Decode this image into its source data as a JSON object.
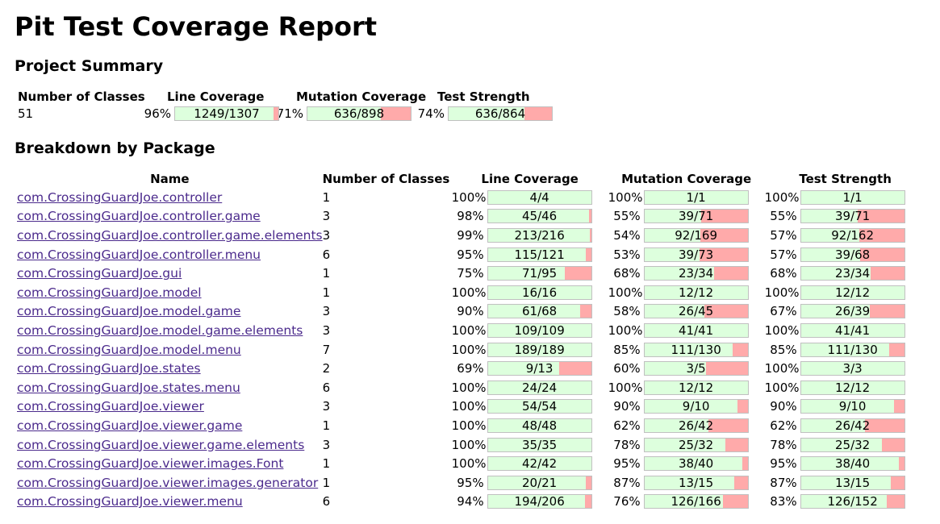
{
  "title": "Pit Test Coverage Report",
  "project_summary": {
    "heading": "Project Summary",
    "headers": [
      "Number of Classes",
      "Line Coverage",
      "Mutation Coverage",
      "Test Strength"
    ],
    "classes": "51",
    "line": {
      "pct": "96%",
      "ratio": "1249/1307",
      "fraction": 0.956
    },
    "mutation": {
      "pct": "71%",
      "ratio": "636/898",
      "fraction": 0.708
    },
    "strength": {
      "pct": "74%",
      "ratio": "636/864",
      "fraction": 0.736
    }
  },
  "breakdown": {
    "heading": "Breakdown by Package",
    "headers": [
      "Name",
      "Number of Classes",
      "Line Coverage",
      "Mutation Coverage",
      "Test Strength"
    ],
    "rows": [
      {
        "name": "com.CrossingGuardJoe.controller",
        "classes": "1",
        "line": {
          "pct": "100%",
          "ratio": "4/4",
          "fraction": 1.0
        },
        "mutation": {
          "pct": "100%",
          "ratio": "1/1",
          "fraction": 1.0
        },
        "strength": {
          "pct": "100%",
          "ratio": "1/1",
          "fraction": 1.0
        }
      },
      {
        "name": "com.CrossingGuardJoe.controller.game",
        "classes": "3",
        "line": {
          "pct": "98%",
          "ratio": "45/46",
          "fraction": 0.978
        },
        "mutation": {
          "pct": "55%",
          "ratio": "39/71",
          "fraction": 0.549
        },
        "strength": {
          "pct": "55%",
          "ratio": "39/71",
          "fraction": 0.549
        }
      },
      {
        "name": "com.CrossingGuardJoe.controller.game.elements",
        "classes": "3",
        "line": {
          "pct": "99%",
          "ratio": "213/216",
          "fraction": 0.986
        },
        "mutation": {
          "pct": "54%",
          "ratio": "92/169",
          "fraction": 0.544
        },
        "strength": {
          "pct": "57%",
          "ratio": "92/162",
          "fraction": 0.568
        }
      },
      {
        "name": "com.CrossingGuardJoe.controller.menu",
        "classes": "6",
        "line": {
          "pct": "95%",
          "ratio": "115/121",
          "fraction": 0.95
        },
        "mutation": {
          "pct": "53%",
          "ratio": "39/73",
          "fraction": 0.534
        },
        "strength": {
          "pct": "57%",
          "ratio": "39/68",
          "fraction": 0.574
        }
      },
      {
        "name": "com.CrossingGuardJoe.gui",
        "classes": "1",
        "line": {
          "pct": "75%",
          "ratio": "71/95",
          "fraction": 0.747
        },
        "mutation": {
          "pct": "68%",
          "ratio": "23/34",
          "fraction": 0.676
        },
        "strength": {
          "pct": "68%",
          "ratio": "23/34",
          "fraction": 0.676
        }
      },
      {
        "name": "com.CrossingGuardJoe.model",
        "classes": "1",
        "line": {
          "pct": "100%",
          "ratio": "16/16",
          "fraction": 1.0
        },
        "mutation": {
          "pct": "100%",
          "ratio": "12/12",
          "fraction": 1.0
        },
        "strength": {
          "pct": "100%",
          "ratio": "12/12",
          "fraction": 1.0
        }
      },
      {
        "name": "com.CrossingGuardJoe.model.game",
        "classes": "3",
        "line": {
          "pct": "90%",
          "ratio": "61/68",
          "fraction": 0.897
        },
        "mutation": {
          "pct": "58%",
          "ratio": "26/45",
          "fraction": 0.578
        },
        "strength": {
          "pct": "67%",
          "ratio": "26/39",
          "fraction": 0.667
        }
      },
      {
        "name": "com.CrossingGuardJoe.model.game.elements",
        "classes": "3",
        "line": {
          "pct": "100%",
          "ratio": "109/109",
          "fraction": 1.0
        },
        "mutation": {
          "pct": "100%",
          "ratio": "41/41",
          "fraction": 1.0
        },
        "strength": {
          "pct": "100%",
          "ratio": "41/41",
          "fraction": 1.0
        }
      },
      {
        "name": "com.CrossingGuardJoe.model.menu",
        "classes": "7",
        "line": {
          "pct": "100%",
          "ratio": "189/189",
          "fraction": 1.0
        },
        "mutation": {
          "pct": "85%",
          "ratio": "111/130",
          "fraction": 0.854
        },
        "strength": {
          "pct": "85%",
          "ratio": "111/130",
          "fraction": 0.854
        }
      },
      {
        "name": "com.CrossingGuardJoe.states",
        "classes": "2",
        "line": {
          "pct": "69%",
          "ratio": "9/13",
          "fraction": 0.692
        },
        "mutation": {
          "pct": "60%",
          "ratio": "3/5",
          "fraction": 0.6
        },
        "strength": {
          "pct": "100%",
          "ratio": "3/3",
          "fraction": 1.0
        }
      },
      {
        "name": "com.CrossingGuardJoe.states.menu",
        "classes": "6",
        "line": {
          "pct": "100%",
          "ratio": "24/24",
          "fraction": 1.0
        },
        "mutation": {
          "pct": "100%",
          "ratio": "12/12",
          "fraction": 1.0
        },
        "strength": {
          "pct": "100%",
          "ratio": "12/12",
          "fraction": 1.0
        }
      },
      {
        "name": "com.CrossingGuardJoe.viewer",
        "classes": "3",
        "line": {
          "pct": "100%",
          "ratio": "54/54",
          "fraction": 1.0
        },
        "mutation": {
          "pct": "90%",
          "ratio": "9/10",
          "fraction": 0.9
        },
        "strength": {
          "pct": "90%",
          "ratio": "9/10",
          "fraction": 0.9
        }
      },
      {
        "name": "com.CrossingGuardJoe.viewer.game",
        "classes": "1",
        "line": {
          "pct": "100%",
          "ratio": "48/48",
          "fraction": 1.0
        },
        "mutation": {
          "pct": "62%",
          "ratio": "26/42",
          "fraction": 0.619
        },
        "strength": {
          "pct": "62%",
          "ratio": "26/42",
          "fraction": 0.619
        }
      },
      {
        "name": "com.CrossingGuardJoe.viewer.game.elements",
        "classes": "3",
        "line": {
          "pct": "100%",
          "ratio": "35/35",
          "fraction": 1.0
        },
        "mutation": {
          "pct": "78%",
          "ratio": "25/32",
          "fraction": 0.781
        },
        "strength": {
          "pct": "78%",
          "ratio": "25/32",
          "fraction": 0.781
        }
      },
      {
        "name": "com.CrossingGuardJoe.viewer.images.Font",
        "classes": "1",
        "line": {
          "pct": "100%",
          "ratio": "42/42",
          "fraction": 1.0
        },
        "mutation": {
          "pct": "95%",
          "ratio": "38/40",
          "fraction": 0.95
        },
        "strength": {
          "pct": "95%",
          "ratio": "38/40",
          "fraction": 0.95
        }
      },
      {
        "name": "com.CrossingGuardJoe.viewer.images.generator",
        "classes": "1",
        "line": {
          "pct": "95%",
          "ratio": "20/21",
          "fraction": 0.952
        },
        "mutation": {
          "pct": "87%",
          "ratio": "13/15",
          "fraction": 0.867
        },
        "strength": {
          "pct": "87%",
          "ratio": "13/15",
          "fraction": 0.867
        }
      },
      {
        "name": "com.CrossingGuardJoe.viewer.menu",
        "classes": "6",
        "line": {
          "pct": "94%",
          "ratio": "194/206",
          "fraction": 0.942
        },
        "mutation": {
          "pct": "76%",
          "ratio": "126/166",
          "fraction": 0.759
        },
        "strength": {
          "pct": "83%",
          "ratio": "126/152",
          "fraction": 0.829
        }
      }
    ]
  },
  "colors": {
    "covered": "#ddffdd",
    "uncovered": "#ffaaaa",
    "bar_border": "#c0c0c0",
    "link": "#4b2a8c"
  }
}
